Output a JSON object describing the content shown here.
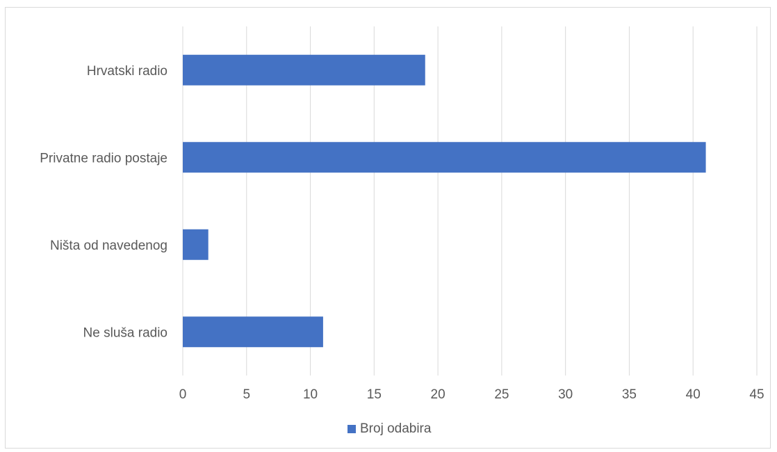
{
  "chart_data": {
    "type": "bar",
    "orientation": "horizontal",
    "categories": [
      "Hrvatski radio",
      "Privatne radio postaje",
      "Ništa od navedenog",
      "Ne sluša radio"
    ],
    "series": [
      {
        "name": "Broj odabira",
        "values": [
          19,
          41,
          2,
          11
        ],
        "color": "#4472c4"
      }
    ],
    "xlim": [
      0,
      45
    ],
    "xticks": [
      0,
      5,
      10,
      15,
      20,
      25,
      30,
      35,
      40,
      45
    ],
    "grid": "vertical",
    "legend": "bottom"
  }
}
